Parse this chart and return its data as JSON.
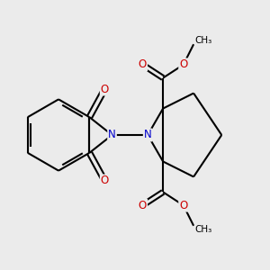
{
  "background_color": "#ebebeb",
  "bond_color": "black",
  "bond_width": 1.5,
  "atom_colors": {
    "N": "#0000cc",
    "O": "#cc0000",
    "C": "black"
  },
  "figsize": [
    3.0,
    3.0
  ],
  "dpi": 100
}
